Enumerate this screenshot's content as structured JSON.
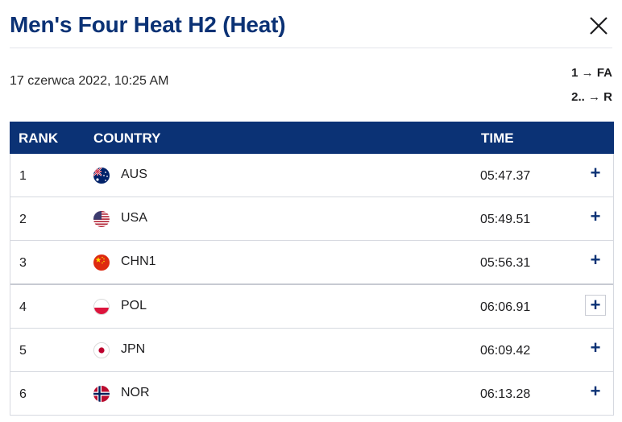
{
  "header": {
    "title": "Men's Four Heat H2 (Heat)",
    "close_icon": "close-icon"
  },
  "race": {
    "datetime": "17 czerwca 2022, 10:25 AM",
    "progression": [
      "1 → FA",
      "2.. → R"
    ]
  },
  "table": {
    "columns": {
      "rank": "RANK",
      "country": "COUNTRY",
      "time": "TIME"
    },
    "expand_label": "+",
    "rows": [
      {
        "rank": "1",
        "country": "AUS",
        "flag": "australia-flag-icon",
        "time": "05:47.37"
      },
      {
        "rank": "2",
        "country": "USA",
        "flag": "usa-flag-icon",
        "time": "05:49.51"
      },
      {
        "rank": "3",
        "country": "CHN1",
        "flag": "china-flag-icon",
        "time": "05:56.31"
      },
      {
        "rank": "4",
        "country": "POL",
        "flag": "poland-flag-icon",
        "time": "06:06.91"
      },
      {
        "rank": "5",
        "country": "JPN",
        "flag": "japan-flag-icon",
        "time": "06:09.42"
      },
      {
        "rank": "6",
        "country": "NOR",
        "flag": "norway-flag-icon",
        "time": "06:13.28"
      }
    ]
  },
  "colors": {
    "primary": "#0b3275",
    "border": "#d6d9e0"
  }
}
